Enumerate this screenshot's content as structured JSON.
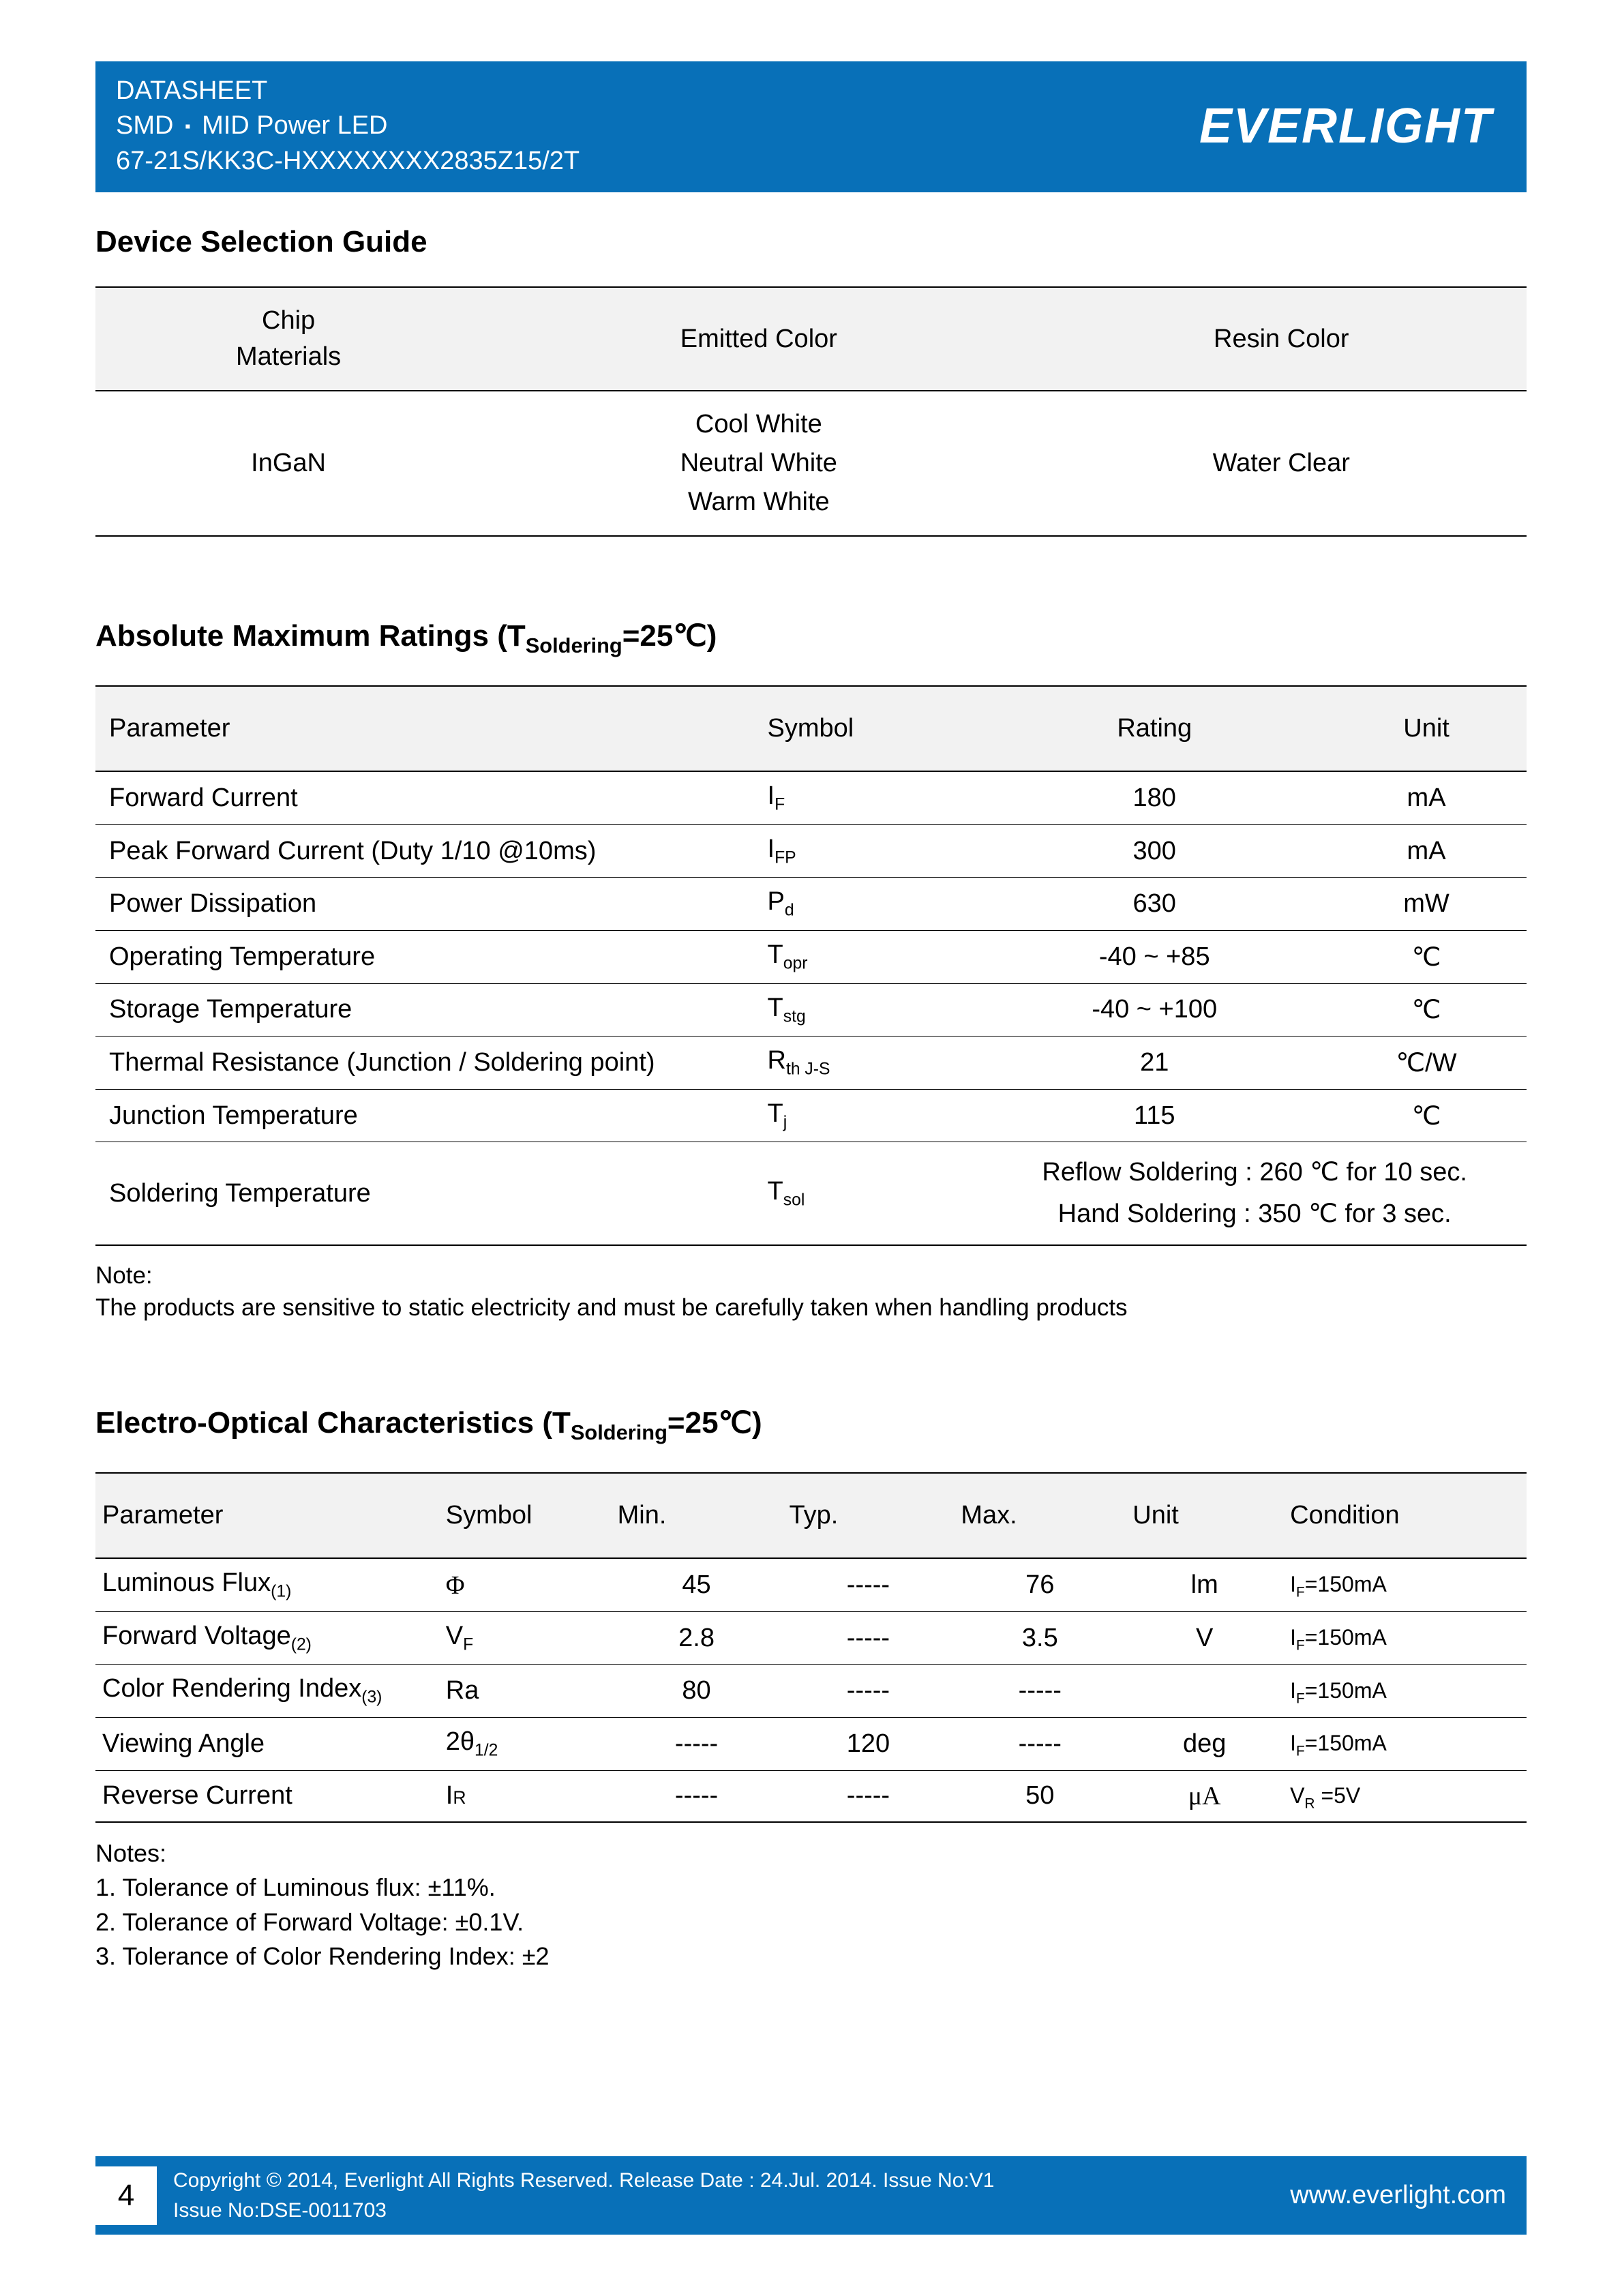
{
  "header": {
    "line1": "DATASHEET",
    "line2a": "SMD",
    "line2b": "MID Power LED",
    "line3": "67-21S/KK3C-HXXXXXXXX2835Z15/2T",
    "logo": "EVERLIGHT"
  },
  "section1": {
    "title": "Device Selection Guide",
    "cols": [
      "Chip\nMaterials",
      "Emitted Color",
      "Resin Color"
    ],
    "row": [
      "InGaN",
      "Cool White\nNeutral White\nWarm White",
      "Water Clear"
    ]
  },
  "section2": {
    "title_pre": "Absolute Maximum Ratings (T",
    "title_sub": "Soldering",
    "title_post": "=25℃)",
    "cols": [
      "Parameter",
      "Symbol",
      "Rating",
      "Unit"
    ],
    "rows": [
      {
        "p": "Forward Current",
        "s": "I",
        "ss": "F",
        "r": "180",
        "u": "mA"
      },
      {
        "p": "Peak Forward Current (Duty 1/10 @10ms)",
        "s": "I",
        "ss": "FP",
        "r": "300",
        "u": "mA"
      },
      {
        "p": "Power Dissipation",
        "s": "P",
        "ss": "d",
        "r": "630",
        "u": "mW"
      },
      {
        "p": "Operating Temperature",
        "s": "T",
        "ss": "opr",
        "r": "-40 ~ +85",
        "u": "℃"
      },
      {
        "p": "Storage Temperature",
        "s": "T",
        "ss": "stg",
        "r": "-40 ~ +100",
        "u": "℃"
      },
      {
        "p": "Thermal Resistance (Junction / Soldering point)",
        "s": "R",
        "ss": "th J-S",
        "r": "21",
        "u": "℃/W"
      },
      {
        "p": "Junction Temperature",
        "s": "T",
        "ss": "j",
        "r": "115",
        "u": "℃"
      }
    ],
    "solder": {
      "p": "Soldering Temperature",
      "s": "T",
      "ss": "sol",
      "r1": "Reflow Soldering : 260 ℃ for 10 sec.",
      "r2": "Hand Soldering : 350 ℃ for 3 sec."
    },
    "note_label": "Note:",
    "note": "The products are sensitive to static electricity and must be carefully taken when handling products"
  },
  "section3": {
    "title_pre": "Electro-Optical Characteristics (T",
    "title_sub": "Soldering",
    "title_post": "=25℃)",
    "cols": [
      "Parameter",
      "Symbol",
      "Min.",
      "Typ.",
      "Max.",
      "Unit",
      "Condition"
    ],
    "rows": [
      {
        "p": "Luminous Flux",
        "psub": "(1)",
        "sym_raw": "Φ",
        "min": "45",
        "typ": "-----",
        "max": "76",
        "unit": "lm",
        "cond_pre": "I",
        "cond_sub": "F",
        "cond_post": "=150mA"
      },
      {
        "p": "Forward Voltage",
        "psub": "(2)",
        "s": "V",
        "ss": "F",
        "min": "2.8",
        "typ": "-----",
        "max": "3.5",
        "unit": "V",
        "cond_pre": "I",
        "cond_sub": "F",
        "cond_post": "=150mA"
      },
      {
        "p": "Color Rendering Index",
        "psub": "(3)",
        "sym_plain": "Ra",
        "min": "80",
        "typ": "-----",
        "max": "-----",
        "unit": "",
        "cond_pre": "I",
        "cond_sub": "F",
        "cond_post": "=150mA"
      },
      {
        "p": "Viewing Angle",
        "psub": "",
        "s": "2θ",
        "ss": "1/2",
        "min": "-----",
        "typ": "120",
        "max": "-----",
        "unit": "deg",
        "cond_pre": "I",
        "cond_sub": "F",
        "cond_post": "=150mA"
      },
      {
        "p": "Reverse Current",
        "psub": "",
        "s": "I",
        "ss_small": "R",
        "min": "-----",
        "typ": "-----",
        "max": "50",
        "unit_raw": "μA",
        "cond_pre": "V",
        "cond_sub": "R",
        "cond_post": " =5V"
      }
    ],
    "notes_label": "Notes:",
    "notes": [
      "1. Tolerance of Luminous flux: ±11%.",
      "2. Tolerance of Forward Voltage: ±0.1V.",
      "3. Tolerance of Color Rendering Index: ±2"
    ]
  },
  "footer": {
    "page": "4",
    "copy": "Copyright © 2014, Everlight All Rights Reserved. Release Date : 24.Jul. 2014. Issue No:V1",
    "issue": "Issue No:DSE-0011703",
    "url": "www.everlight.com"
  }
}
